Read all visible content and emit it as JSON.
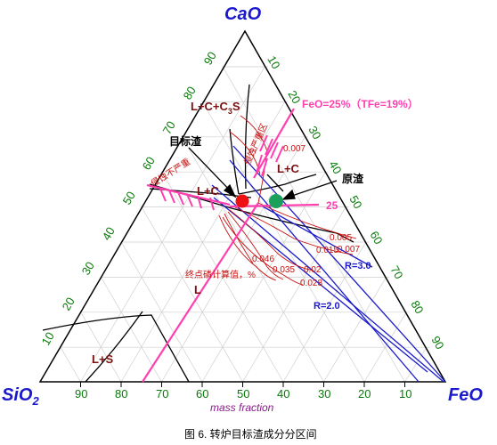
{
  "corners": {
    "top": "CaO",
    "left": "SiO",
    "left_sub": "2",
    "right": "FeO"
  },
  "ticks": {
    "left_edge": [
      "90",
      "80",
      "70",
      "60",
      "50",
      "40",
      "30",
      "20",
      "10"
    ],
    "right_edge": [
      "10",
      "20",
      "30",
      "40",
      "50",
      "60",
      "70",
      "80",
      "90"
    ],
    "bottom_edge": [
      "90",
      "80",
      "70",
      "60",
      "50",
      "40",
      "30",
      "20",
      "10"
    ]
  },
  "regions": {
    "lcc3s": "L+C+C",
    "lcc3s_sub": "3",
    "lcc3s_tail": "S",
    "lc_right": "L+C",
    "lc_left": "L+C",
    "ls": "L+S",
    "l": "L"
  },
  "labels": {
    "target_slag": "目标渣",
    "original_slag": "原渣",
    "erosion_mild": "侵蚀不严重",
    "erosion_severe": "侵蚀严重区",
    "feo_line": "FeO=25%（TFe=19%）",
    "feo_value": "25",
    "r3": "R=3.0",
    "r2": "R=2.0",
    "p_label": "终点磷计算值，%"
  },
  "contours": [
    "0.007",
    "0.005",
    "0.007",
    "0.015",
    "0.046",
    "0.035",
    "0.02",
    "0.028"
  ],
  "axis_title": "mass fraction",
  "caption": "图 6. 转炉目标渣成分分区间",
  "colors": {
    "triangle": "#000000",
    "grid": "#c9c9c9",
    "tick_text": "#0a7a0a",
    "corner_text": "#1a1acc",
    "pink": "#ff3fb0",
    "red": "#c81010",
    "blue": "#1a1acc",
    "target_marker": "#ee1111",
    "original_marker": "#1aa05a"
  }
}
